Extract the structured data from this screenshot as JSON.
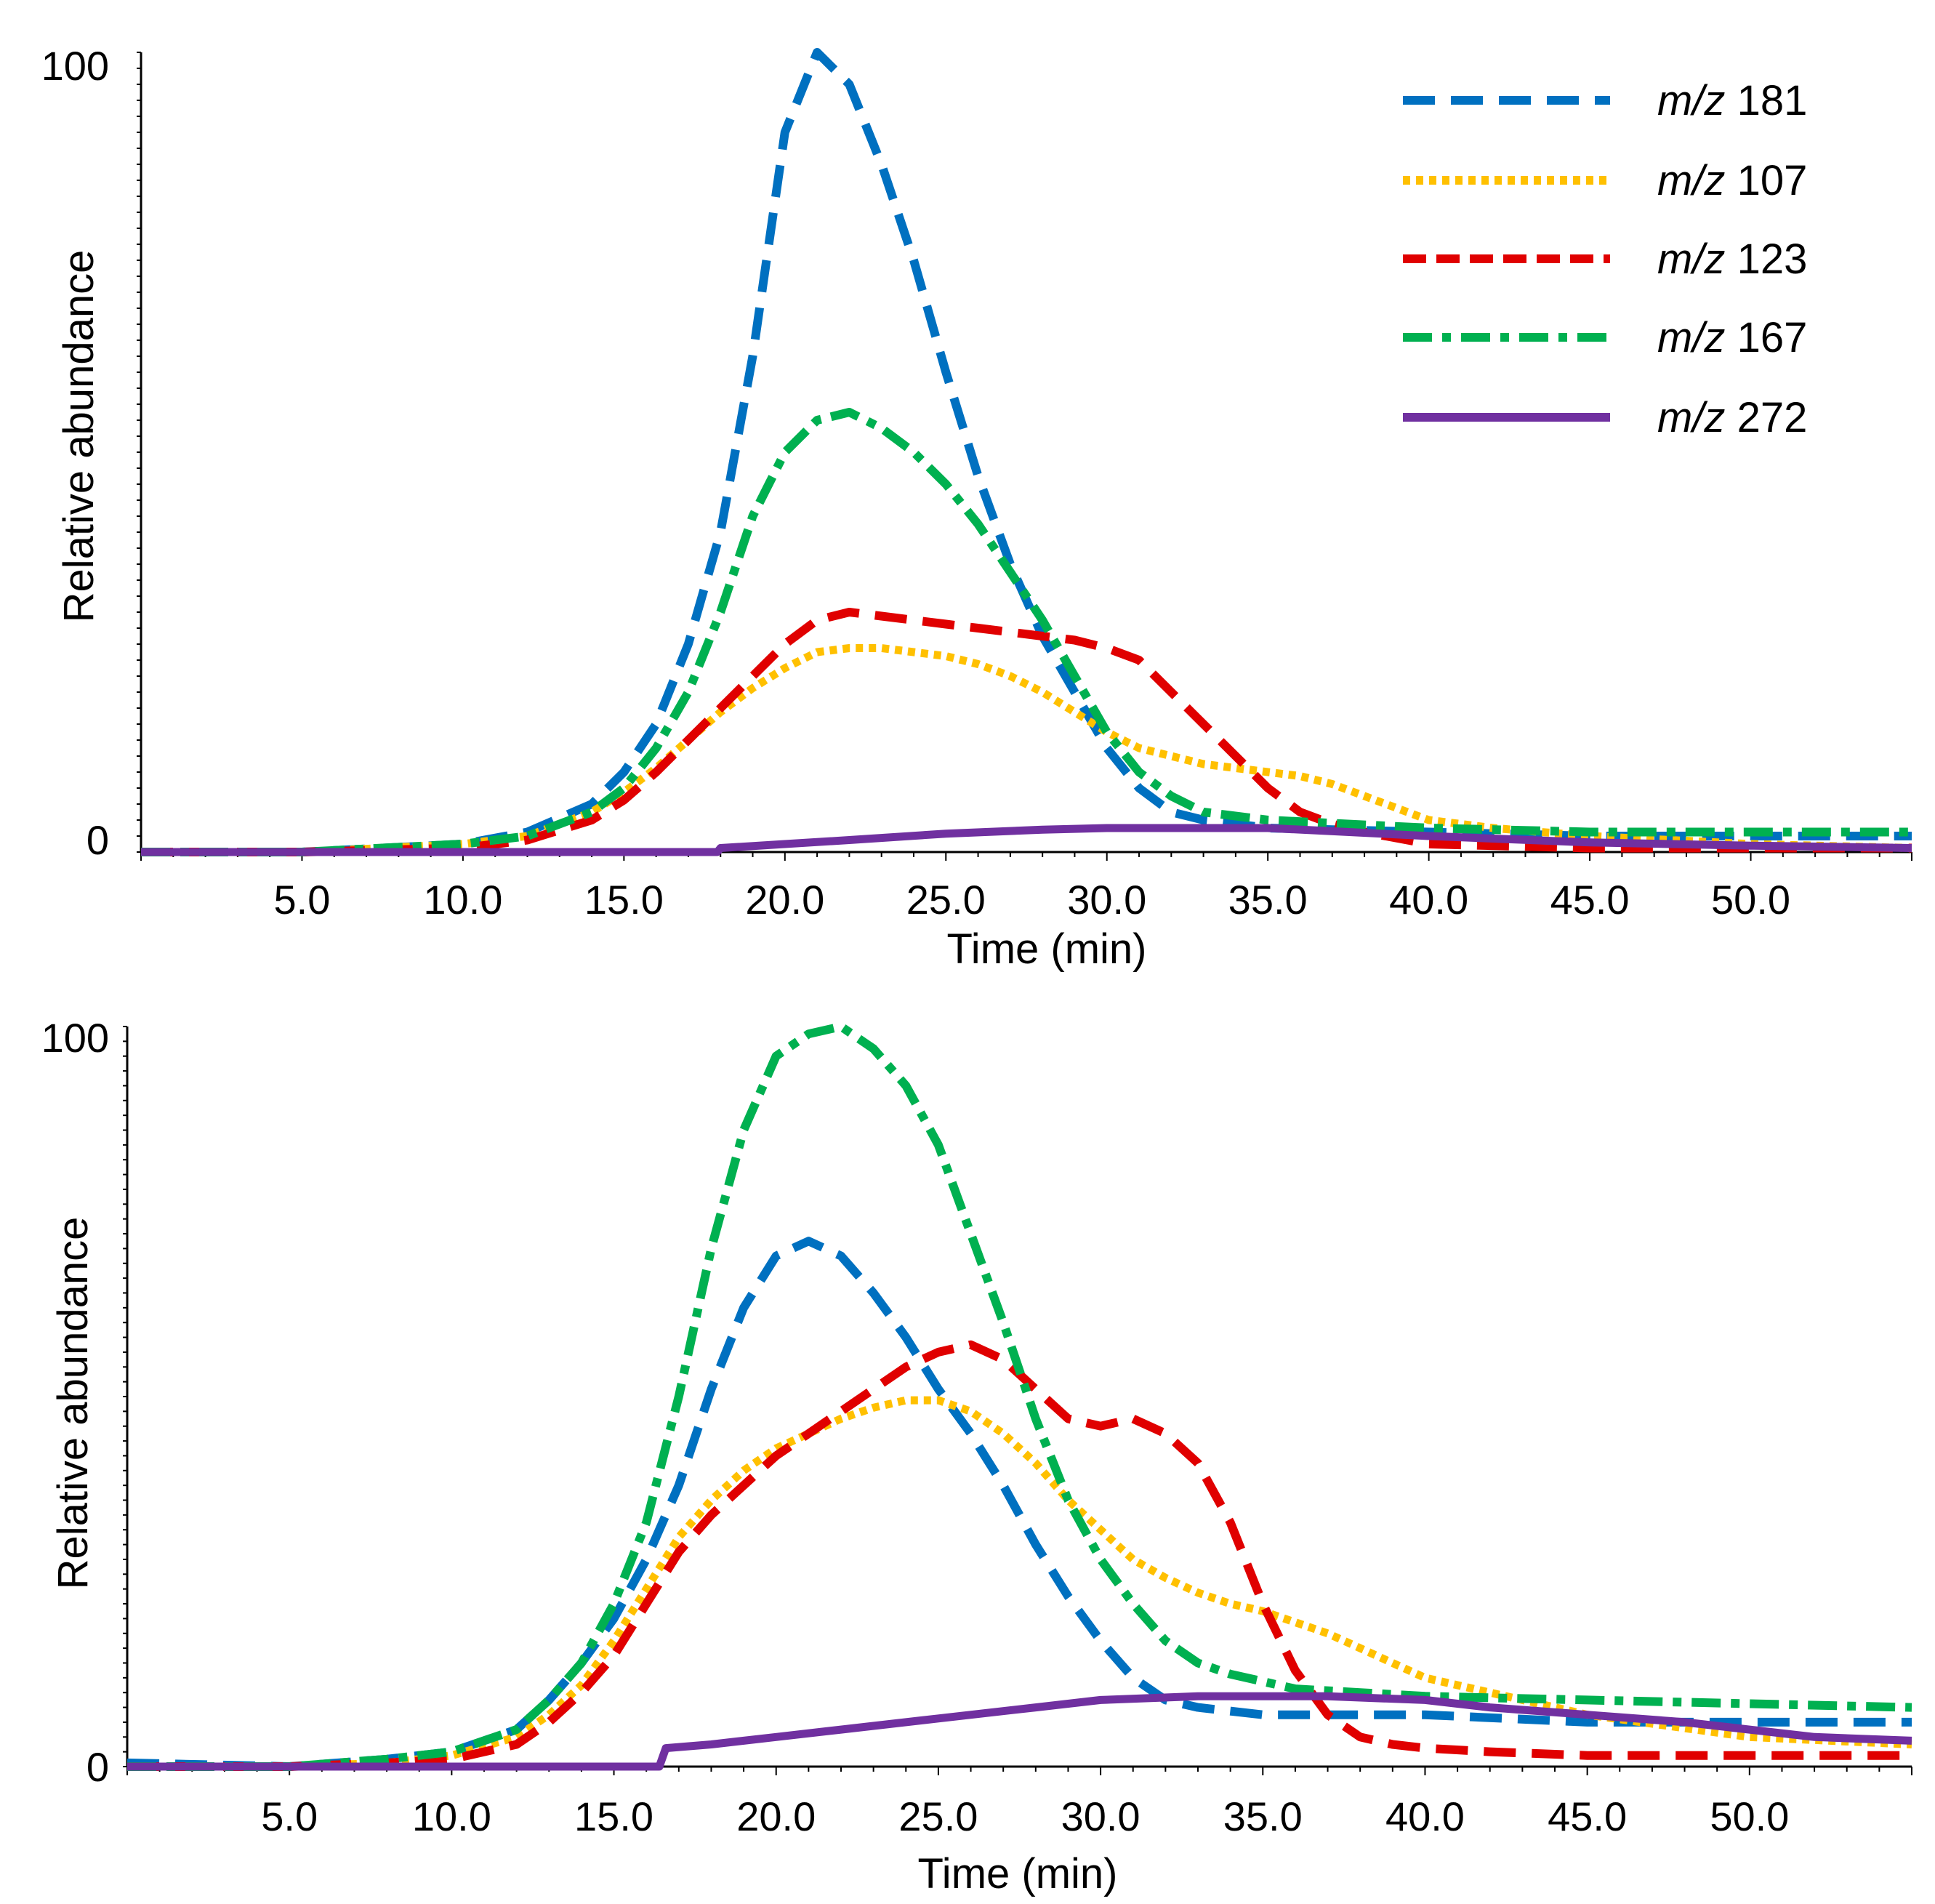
{
  "chart_data": [
    {
      "type": "line",
      "panel": "top",
      "xlabel": "Time (min)",
      "ylabel": "Relative abundance",
      "xlim": [
        0,
        55
      ],
      "ylim": [
        0,
        100
      ],
      "x_ticks": [
        5,
        10,
        15,
        20,
        25,
        30,
        35,
        40,
        45,
        50
      ],
      "x_tick_labels": [
        "5.0",
        "10.0",
        "15.0",
        "20.0",
        "25.0",
        "30.0",
        "35.0",
        "40.0",
        "45.0",
        "50.0"
      ],
      "y_tick_labels": [
        "0",
        "100"
      ],
      "legend": {
        "position": "top-right",
        "entries": [
          {
            "series": "m/z 181",
            "prefix": "m/z",
            "value": "181"
          },
          {
            "series": "m/z 107",
            "prefix": "m/z",
            "value": "107"
          },
          {
            "series": "m/z 123",
            "prefix": "m/z",
            "value": "123"
          },
          {
            "series": "m/z 167",
            "prefix": "m/z",
            "value": "167"
          },
          {
            "series": "m/z 272",
            "prefix": "m/z",
            "value": "272"
          }
        ]
      },
      "series": [
        {
          "name": "m/z 181",
          "color": "#0070c0",
          "style": "dashed",
          "x": [
            0,
            5,
            10,
            12,
            14,
            15,
            16,
            17,
            18,
            19,
            20,
            21,
            22,
            23,
            24,
            25,
            26,
            27,
            28,
            29,
            30,
            31,
            32,
            33,
            35,
            40,
            45,
            50,
            55
          ],
          "y": [
            0,
            0,
            1,
            2.5,
            6,
            10,
            16,
            26,
            40,
            62,
            90,
            100,
            96,
            86,
            74,
            60,
            47,
            36,
            27,
            20,
            13,
            8,
            5,
            4,
            3,
            2.5,
            2,
            2,
            2
          ]
        },
        {
          "name": "m/z 107",
          "color": "#ffc000",
          "style": "dotted",
          "x": [
            0,
            5,
            10,
            12,
            14,
            15,
            16,
            17,
            18,
            19,
            20,
            21,
            22,
            23,
            24,
            25,
            26,
            27,
            28,
            29,
            30,
            31,
            32,
            33,
            34,
            35,
            36,
            37,
            38,
            39,
            40,
            42,
            45,
            50,
            55
          ],
          "y": [
            0,
            0,
            1,
            2,
            5,
            7.5,
            10.5,
            14,
            17.5,
            20.5,
            23,
            25,
            25.5,
            25.5,
            25,
            24.5,
            23.5,
            22,
            20,
            17.5,
            15,
            13,
            12,
            11,
            10.5,
            10,
            9.5,
            8.5,
            7,
            5.5,
            4,
            3,
            2,
            1,
            0.5
          ]
        },
        {
          "name": "m/z 123",
          "color": "#e00000",
          "style": "dashed",
          "x": [
            0,
            5,
            10,
            12,
            14,
            15,
            16,
            17,
            18,
            19,
            20,
            21,
            22,
            23,
            24,
            25,
            26,
            27,
            28,
            29,
            30,
            31,
            32,
            33,
            34,
            35,
            36,
            37,
            38,
            40,
            45,
            50,
            55
          ],
          "y": [
            0,
            0,
            0.5,
            1.5,
            4,
            6.5,
            10,
            14,
            18,
            22,
            26,
            29,
            30,
            29.5,
            29,
            28.5,
            28,
            27.5,
            27,
            26.5,
            25.5,
            24,
            20,
            16,
            12,
            8,
            5,
            3.5,
            2.5,
            1,
            0.5,
            0.5,
            0.5
          ]
        },
        {
          "name": "m/z 167",
          "color": "#00b050",
          "style": "dashdot",
          "x": [
            0,
            5,
            10,
            12,
            14,
            15,
            16,
            17,
            18,
            19,
            20,
            21,
            22,
            23,
            24,
            25,
            26,
            27,
            28,
            29,
            30,
            31,
            32,
            33,
            35,
            40,
            45,
            50,
            55
          ],
          "y": [
            0,
            0,
            1,
            2,
            5,
            8,
            13,
            20,
            30,
            42,
            50,
            54,
            55,
            53,
            50,
            46,
            41,
            35,
            29,
            22,
            15,
            10,
            7,
            5,
            4,
            3,
            2.5,
            2.5,
            2.5
          ]
        },
        {
          "name": "m/z 272",
          "color": "#7030a0",
          "style": "solid",
          "x": [
            0,
            5,
            10,
            15,
            17.9,
            18,
            20,
            22,
            25,
            28,
            30,
            35,
            40,
            45,
            50,
            55
          ],
          "y": [
            0,
            0,
            0,
            0,
            0,
            0.5,
            1,
            1.5,
            2.3,
            2.8,
            3,
            3,
            2,
            1.2,
            0.8,
            0.5
          ]
        }
      ]
    },
    {
      "type": "line",
      "panel": "bottom",
      "xlabel": "Time (min)",
      "ylabel": "Relative abundance",
      "xlim": [
        0,
        55
      ],
      "ylim": [
        0,
        100
      ],
      "x_ticks": [
        5,
        10,
        15,
        20,
        25,
        30,
        35,
        40,
        45,
        50
      ],
      "x_tick_labels": [
        "5.0",
        "10.0",
        "15.0",
        "20.0",
        "25.0",
        "30.0",
        "35.0",
        "40.0",
        "45.0",
        "50.0"
      ],
      "y_tick_labels": [
        "0",
        "100"
      ],
      "series": [
        {
          "name": "m/z 181",
          "color": "#0070c0",
          "style": "dashed",
          "x": [
            0,
            5,
            8,
            10,
            12,
            13,
            14,
            15,
            16,
            17,
            18,
            19,
            20,
            21,
            22,
            23,
            24,
            25,
            26,
            27,
            28,
            29,
            30,
            31,
            32,
            33,
            35,
            40,
            45,
            50,
            55
          ],
          "y": [
            0.5,
            0,
            1,
            2,
            5,
            9,
            14,
            20,
            28,
            38,
            51,
            62,
            69,
            71,
            69,
            64,
            58,
            51,
            45,
            38,
            30,
            23,
            17,
            12,
            9,
            8,
            7,
            7,
            6,
            6,
            6
          ]
        },
        {
          "name": "m/z 107",
          "color": "#ffc000",
          "style": "dotted",
          "x": [
            0,
            5,
            8,
            10,
            12,
            13,
            14,
            15,
            16,
            17,
            18,
            19,
            20,
            21,
            22,
            23,
            24,
            25,
            26,
            27,
            28,
            29,
            30,
            31,
            32,
            33,
            34,
            35,
            36,
            37,
            38,
            39,
            40,
            42,
            45,
            50,
            55
          ],
          "y": [
            0,
            0,
            0.5,
            1.5,
            4,
            7,
            11,
            17,
            24,
            31,
            36,
            40,
            43,
            45,
            47,
            48.5,
            49.5,
            49.5,
            48,
            45,
            41,
            36,
            32,
            28,
            25.5,
            23.5,
            22,
            21,
            19.5,
            18,
            16,
            14,
            12,
            10,
            7,
            4,
            3
          ]
        },
        {
          "name": "m/z 123",
          "color": "#e00000",
          "style": "dashed",
          "x": [
            0,
            5,
            8,
            10,
            12,
            13,
            14,
            15,
            16,
            17,
            18,
            19,
            20,
            21,
            22,
            23,
            24,
            25,
            26,
            27,
            28,
            29,
            30,
            31,
            32,
            33,
            34,
            35,
            36,
            37,
            38,
            39,
            40,
            42,
            45,
            50,
            55
          ],
          "y": [
            0,
            0,
            0.5,
            1,
            3,
            6,
            10,
            15,
            22,
            29,
            34,
            38,
            42,
            45,
            48,
            51,
            54,
            56,
            57,
            55,
            51,
            47,
            46,
            47,
            45,
            41,
            33,
            22,
            13,
            7,
            4,
            3,
            2.5,
            2,
            1.5,
            1.5,
            1.5
          ]
        },
        {
          "name": "m/z 167",
          "color": "#00b050",
          "style": "dashdot",
          "x": [
            0,
            5,
            8,
            10,
            12,
            13,
            14,
            15,
            16,
            17,
            18,
            19,
            20,
            21,
            22,
            23,
            24,
            25,
            26,
            27,
            28,
            29,
            30,
            31,
            32,
            33,
            34,
            35,
            36,
            38,
            40,
            45,
            50,
            55
          ],
          "y": [
            0,
            0,
            1,
            2,
            5,
            9,
            14,
            22,
            33,
            50,
            70,
            86,
            96,
            99,
            100,
            97,
            92,
            84,
            72,
            60,
            47,
            36,
            28,
            22,
            17,
            14,
            12.5,
            11.5,
            10.5,
            10,
            9.5,
            9,
            8.5,
            8
          ]
        },
        {
          "name": "m/z 272",
          "color": "#7030a0",
          "style": "solid",
          "x": [
            0,
            5,
            10,
            15,
            16.4,
            16.6,
            18,
            20,
            22,
            25,
            28,
            30,
            33,
            35,
            37,
            40,
            42,
            45,
            48,
            50,
            52,
            55
          ],
          "y": [
            0,
            0,
            0,
            0,
            0,
            2.5,
            3,
            4,
            5,
            6.5,
            8,
            9,
            9.5,
            9.5,
            9.5,
            9,
            8,
            7,
            6,
            5,
            4,
            3.5
          ]
        }
      ]
    }
  ]
}
